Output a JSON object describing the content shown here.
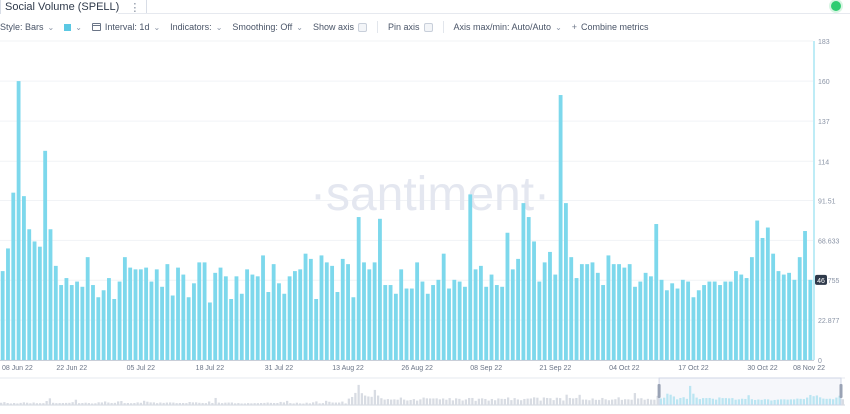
{
  "header": {
    "title": "Social Volume (SPELL)",
    "menu_icon": "kebab-icon",
    "status_color": "#2ecc71"
  },
  "toolbar": {
    "style_label": "Style: Bars",
    "color_swatch": "#5bc8e3",
    "interval_label": "Interval: 1d",
    "indicators_label": "Indicators:",
    "smoothing_label": "Smoothing: Off",
    "show_axis_label": "Show axis",
    "pin_axis_label": "Pin axis",
    "axis_minmax_label": "Axis max/min: Auto/Auto",
    "combine_label": "Combine metrics"
  },
  "watermark": "·santiment·",
  "chart_data": {
    "type": "bar",
    "bar_color": "#7dd8ec",
    "overview_color": "#d8dce3",
    "ylim": [
      0,
      183
    ],
    "y_ticks": [
      "183",
      "160",
      "137",
      "114",
      "91.51",
      "68.633",
      "45.755",
      "22.877",
      "0"
    ],
    "y_tick_values": [
      183,
      160,
      137,
      114,
      91.51,
      68.633,
      45.755,
      22.877,
      0
    ],
    "x_tick_labels": [
      "08 Jun 22",
      "22 Jun 22",
      "05 Jul 22",
      "18 Jul 22",
      "31 Jul 22",
      "13 Aug 22",
      "26 Aug 22",
      "08 Sep 22",
      "21 Sep 22",
      "04 Oct 22",
      "17 Oct 22",
      "30 Oct 22",
      "08 Nov 22"
    ],
    "x_tick_day_index": [
      0,
      13,
      26,
      39,
      52,
      65,
      78,
      91,
      104,
      117,
      130,
      143,
      152
    ],
    "last_value_label": "46",
    "values": [
      51,
      64,
      96,
      160,
      94,
      75,
      68,
      65,
      120,
      75,
      54,
      43,
      47,
      43,
      45,
      42,
      59,
      43,
      36,
      40,
      47,
      35,
      45,
      59,
      53,
      52,
      52,
      53,
      45,
      52,
      42,
      55,
      37,
      53,
      49,
      36,
      44,
      56,
      56,
      33,
      50,
      53,
      48,
      35,
      48,
      38,
      52,
      49,
      48,
      60,
      39,
      55,
      44,
      38,
      48,
      51,
      52,
      61,
      58,
      35,
      60,
      56,
      54,
      39,
      58,
      55,
      36,
      82,
      56,
      52,
      56,
      81,
      43,
      43,
      38,
      52,
      41,
      41,
      56,
      45,
      38,
      43,
      46,
      61,
      41,
      46,
      45,
      42,
      95,
      52,
      54,
      42,
      49,
      43,
      42,
      73,
      52,
      58,
      90,
      82,
      68,
      45,
      56,
      62,
      49,
      152,
      90,
      59,
      47,
      55,
      55,
      56,
      50,
      43,
      60,
      55,
      55,
      53,
      55,
      42,
      45,
      50,
      48,
      78,
      46,
      40,
      44,
      41,
      46,
      45,
      36,
      40,
      43,
      45,
      45,
      43,
      45,
      45,
      51,
      49,
      47,
      59,
      80,
      70,
      76,
      61,
      51,
      49,
      50,
      46,
      59,
      74,
      46
    ],
    "values_note_last_visible_day": "08 Nov 22"
  }
}
